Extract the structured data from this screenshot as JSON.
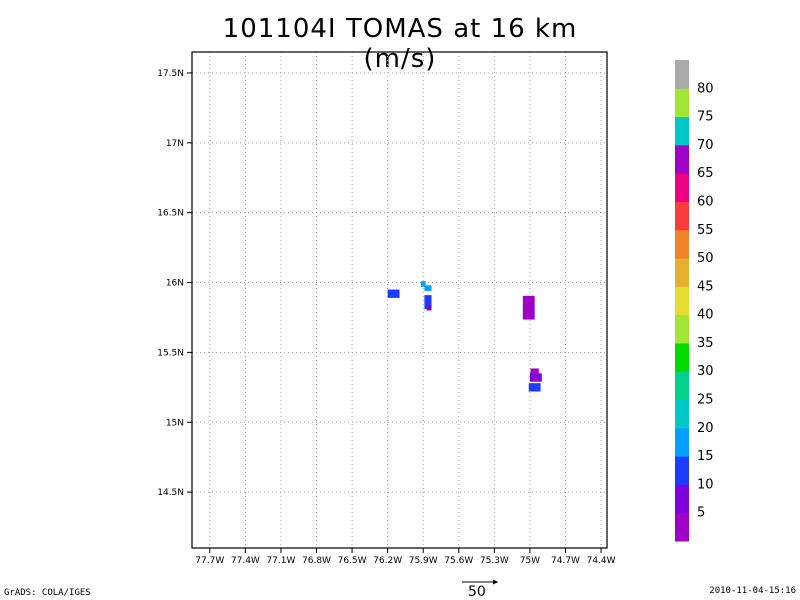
{
  "title": "101104I TOMAS at 16 km (m/s)",
  "footer": {
    "left": "GrADS: COLA/IGES",
    "right": "2010-11-04-15:16"
  },
  "vector_reference": {
    "label": "50"
  },
  "chart_data": {
    "type": "heatmap",
    "title": "101104I TOMAS at 16 km (m/s)",
    "xlim": [
      -77.85,
      -74.35
    ],
    "ylim": [
      14.1,
      17.65
    ],
    "x_ticks": [
      -77.7,
      -77.4,
      -77.1,
      -76.8,
      -76.5,
      -76.2,
      -75.9,
      -75.6,
      -75.3,
      -75.0,
      -74.7,
      -74.4
    ],
    "x_tick_labels": [
      "77.7W",
      "77.4W",
      "77.1W",
      "76.8W",
      "76.5W",
      "76.2W",
      "75.9W",
      "75.6W",
      "75.3W",
      "75W",
      "74.7W",
      "74.4W"
    ],
    "y_ticks": [
      14.5,
      15.0,
      15.5,
      16.0,
      16.5,
      17.0,
      17.5
    ],
    "y_tick_labels": [
      "14.5N",
      "15N",
      "15.5N",
      "16N",
      "16.5N",
      "17N",
      "17.5N"
    ],
    "grid": true,
    "colorbar": {
      "position": "right",
      "labels": [
        "5",
        "10",
        "15",
        "20",
        "25",
        "30",
        "35",
        "40",
        "45",
        "50",
        "55",
        "60",
        "65",
        "70",
        "75",
        "80"
      ],
      "colors": [
        "#a000c8",
        "#8200dc",
        "#1e3cff",
        "#00a0ff",
        "#00c8c8",
        "#00d28c",
        "#00dc00",
        "#a0e632",
        "#e6dc32",
        "#e6af2d",
        "#f08228",
        "#fa3c3c",
        "#f00082",
        "#a000c8",
        "#00c8c8",
        "#a0e632",
        "#aaaaaa"
      ]
    },
    "cells": [
      {
        "lon": -76.15,
        "lat": 15.92,
        "dlon": 0.1,
        "dlat": 0.06,
        "value": 12,
        "color": "#1e3cff"
      },
      {
        "lon": -75.9,
        "lat": 15.99,
        "dlon": 0.04,
        "dlat": 0.04,
        "value": 18,
        "color": "#00a0ff"
      },
      {
        "lon": -75.86,
        "lat": 15.96,
        "dlon": 0.06,
        "dlat": 0.04,
        "value": 18,
        "color": "#00a0ff"
      },
      {
        "lon": -75.86,
        "lat": 15.86,
        "dlon": 0.06,
        "dlat": 0.1,
        "value": 12,
        "color": "#1e3cff"
      },
      {
        "lon": -75.85,
        "lat": 15.82,
        "dlon": 0.04,
        "dlat": 0.04,
        "value": 8,
        "color": "#8200dc"
      },
      {
        "lon": -75.01,
        "lat": 15.82,
        "dlon": 0.1,
        "dlat": 0.17,
        "value": 4,
        "color": "#a000c8"
      },
      {
        "lon": -74.96,
        "lat": 15.36,
        "dlon": 0.07,
        "dlat": 0.05,
        "value": 4,
        "color": "#a000c8"
      },
      {
        "lon": -74.95,
        "lat": 15.32,
        "dlon": 0.1,
        "dlat": 0.06,
        "value": 8,
        "color": "#8200dc"
      },
      {
        "lon": -74.96,
        "lat": 15.25,
        "dlon": 0.1,
        "dlat": 0.06,
        "value": 12,
        "color": "#1e3cff"
      }
    ]
  }
}
